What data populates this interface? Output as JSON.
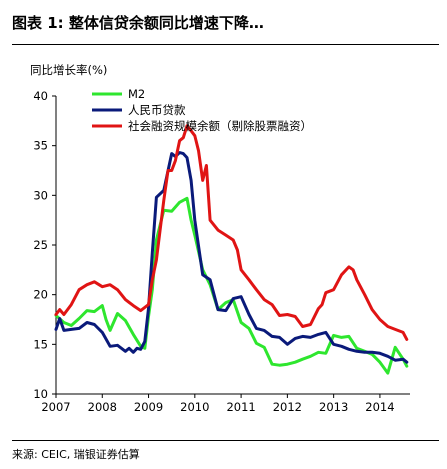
{
  "figure": {
    "title": "图表 1: 整体信贷余额同比增速下降…",
    "source": "来源: CEIC, 瑞银证券估算"
  },
  "chart_data": {
    "type": "line",
    "title": "",
    "xlabel": "",
    "ylabel": "同比增长率(%)",
    "ylim": [
      10,
      40
    ],
    "yticks": [
      10,
      15,
      20,
      25,
      30,
      35,
      40
    ],
    "xlim": [
      2007.0,
      2014.65
    ],
    "xticks": [
      "2007",
      "2008",
      "2009",
      "2010",
      "2011",
      "2012",
      "2013",
      "2014"
    ],
    "grid": false,
    "legend": "top-left",
    "series": [
      {
        "name": "M2",
        "color": "#2ee62e",
        "x": [
          2007.0,
          2007.17,
          2007.33,
          2007.5,
          2007.67,
          2007.83,
          2008.0,
          2008.08,
          2008.17,
          2008.33,
          2008.5,
          2008.67,
          2008.83,
          2008.92,
          2009.0,
          2009.08,
          2009.17,
          2009.33,
          2009.5,
          2009.67,
          2009.83,
          2009.92,
          2010.0,
          2010.17,
          2010.33,
          2010.5,
          2010.67,
          2010.83,
          2011.0,
          2011.17,
          2011.33,
          2011.5,
          2011.67,
          2011.83,
          2012.0,
          2012.17,
          2012.33,
          2012.5,
          2012.67,
          2012.83,
          2013.0,
          2013.17,
          2013.33,
          2013.5,
          2013.67,
          2013.83,
          2014.0,
          2014.17,
          2014.33,
          2014.5,
          2014.58
        ],
        "values": [
          17.9,
          17.2,
          16.9,
          17.6,
          18.4,
          18.3,
          18.9,
          17.5,
          16.4,
          18.1,
          17.4,
          16.0,
          14.8,
          14.6,
          17.8,
          20.5,
          25.5,
          28.5,
          28.4,
          29.3,
          29.7,
          27.5,
          26.0,
          22.5,
          21.0,
          18.5,
          19.2,
          19.5,
          17.2,
          16.6,
          15.1,
          14.7,
          13.0,
          12.9,
          13.0,
          13.2,
          13.5,
          13.8,
          14.2,
          14.1,
          15.9,
          15.7,
          15.8,
          14.6,
          14.3,
          14.0,
          13.2,
          12.1,
          14.7,
          13.5,
          12.8
        ]
      },
      {
        "name": "人民币贷款",
        "color": "#0a1a7a",
        "x": [
          2007.0,
          2007.08,
          2007.17,
          2007.33,
          2007.5,
          2007.67,
          2007.83,
          2008.0,
          2008.17,
          2008.33,
          2008.5,
          2008.58,
          2008.67,
          2008.75,
          2008.83,
          2008.92,
          2009.0,
          2009.08,
          2009.17,
          2009.33,
          2009.5,
          2009.58,
          2009.67,
          2009.75,
          2009.83,
          2009.92,
          2010.0,
          2010.17,
          2010.33,
          2010.5,
          2010.67,
          2010.83,
          2011.0,
          2011.17,
          2011.33,
          2011.5,
          2011.67,
          2011.83,
          2012.0,
          2012.17,
          2012.33,
          2012.5,
          2012.67,
          2012.83,
          2013.0,
          2013.17,
          2013.33,
          2013.5,
          2013.67,
          2013.83,
          2014.0,
          2014.17,
          2014.33,
          2014.5,
          2014.58
        ],
        "values": [
          16.5,
          17.6,
          16.4,
          16.5,
          16.6,
          17.2,
          17.0,
          16.2,
          14.8,
          14.9,
          14.3,
          14.6,
          14.2,
          14.6,
          14.5,
          15.3,
          18.6,
          24.2,
          29.8,
          30.5,
          34.2,
          33.9,
          34.3,
          34.2,
          33.8,
          31.5,
          27.5,
          22.0,
          21.5,
          18.5,
          18.4,
          19.6,
          19.8,
          18.0,
          16.6,
          16.4,
          15.8,
          15.7,
          15.0,
          15.6,
          15.8,
          15.7,
          16.0,
          16.2,
          15.0,
          14.8,
          14.5,
          14.3,
          14.2,
          14.2,
          14.1,
          13.8,
          13.4,
          13.5,
          13.2
        ]
      },
      {
        "name": "社会融资规模余额（剔除股票融资）",
        "color": "#e01414",
        "x": [
          2007.0,
          2007.08,
          2007.17,
          2007.33,
          2007.5,
          2007.67,
          2007.83,
          2008.0,
          2008.17,
          2008.33,
          2008.5,
          2008.67,
          2008.83,
          2009.0,
          2009.08,
          2009.17,
          2009.33,
          2009.42,
          2009.5,
          2009.58,
          2009.67,
          2009.75,
          2009.83,
          2009.92,
          2010.0,
          2010.08,
          2010.17,
          2010.25,
          2010.33,
          2010.5,
          2010.67,
          2010.83,
          2010.92,
          2011.0,
          2011.17,
          2011.33,
          2011.5,
          2011.67,
          2011.83,
          2012.0,
          2012.17,
          2012.33,
          2012.5,
          2012.67,
          2012.75,
          2012.83,
          2013.0,
          2013.17,
          2013.33,
          2013.42,
          2013.5,
          2013.67,
          2013.83,
          2014.0,
          2014.17,
          2014.33,
          2014.5,
          2014.58
        ],
        "values": [
          18.0,
          18.5,
          18.0,
          19.0,
          20.5,
          21.0,
          21.3,
          20.8,
          21.0,
          20.5,
          19.5,
          18.9,
          18.4,
          19.0,
          21.5,
          23.5,
          29.5,
          32.5,
          32.5,
          33.5,
          35.5,
          35.8,
          37.0,
          36.5,
          36.0,
          34.5,
          31.5,
          33.0,
          27.5,
          26.5,
          26.0,
          25.5,
          24.5,
          22.5,
          21.5,
          20.5,
          19.5,
          19.0,
          17.9,
          18.0,
          17.8,
          16.8,
          17.0,
          18.6,
          19.0,
          20.2,
          20.5,
          22.0,
          22.8,
          22.5,
          21.5,
          20.0,
          18.5,
          17.5,
          16.8,
          16.5,
          16.2,
          15.5
        ]
      }
    ]
  }
}
